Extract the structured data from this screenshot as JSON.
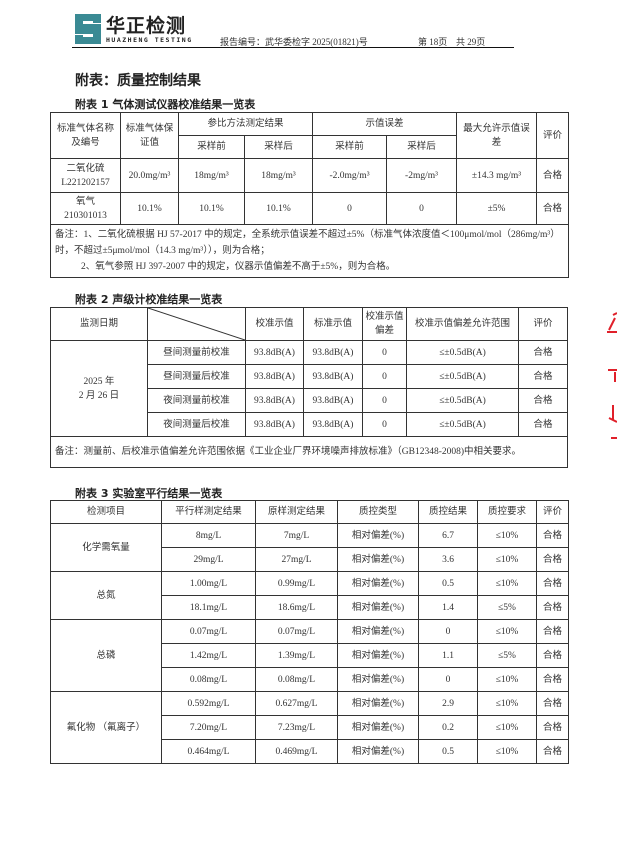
{
  "header": {
    "logo_cn": "华正检测",
    "logo_en": "HUAZHENG TESTING",
    "report_no": "报告编号：武华委检字 2025(01821)号",
    "page": "第 18页",
    "total": "共 29页"
  },
  "title": "附表：质量控制结果",
  "table1": {
    "caption": "附表 1  气体测试仪器校准结果一览表",
    "headers": {
      "name": "标准气体名称及编号",
      "cert": "标准气体保证值",
      "ref": "参比方法测定结果",
      "err": "示值误差",
      "before": "采样前",
      "after": "采样后",
      "max": "最大允许示值误差",
      "eval": "评价"
    },
    "rows": [
      {
        "name": "二氧化硫",
        "id": "L221202157",
        "cert": "20.0mg/m³",
        "ref_before": "18mg/m³",
        "ref_after": "18mg/m³",
        "err_before": "-2.0mg/m³",
        "err_after": "-2mg/m³",
        "max": "±14.3 mg/m³",
        "eval": "合格"
      },
      {
        "name": "氧气",
        "id": "210301013",
        "cert": "10.1%",
        "ref_before": "10.1%",
        "ref_after": "10.1%",
        "err_before": "0",
        "err_after": "0",
        "max": "±5%",
        "eval": "合格"
      }
    ],
    "note1": "备注：1、二氧化硫根据 HJ 57-2017 中的规定，全系统示值误差不超过±5%（标准气体浓度值＜100μmol/mol（286mg/m³）时，不超过±5μmol/mol（14.3 mg/m³）），则为合格；",
    "note2": "2、氧气参照 HJ 397-2007 中的规定，仪器示值偏差不高于±5%，则为合格。"
  },
  "table2": {
    "caption": "附表 2  声级计校准结果一览表",
    "headers": {
      "date": "监测日期",
      "cal": "校准示值",
      "std": "标准示值",
      "dev": "校准示值偏差",
      "range": "校准示值偏差允许范围",
      "eval": "评价"
    },
    "date_line1": "2025 年",
    "date_line2": "2 月 26 日",
    "rows": [
      {
        "item": "昼间测量前校准",
        "cal": "93.8dB(A)",
        "std": "93.8dB(A)",
        "dev": "0",
        "range": "≤±0.5dB(A)",
        "eval": "合格"
      },
      {
        "item": "昼间测量后校准",
        "cal": "93.8dB(A)",
        "std": "93.8dB(A)",
        "dev": "0",
        "range": "≤±0.5dB(A)",
        "eval": "合格"
      },
      {
        "item": "夜间测量前校准",
        "cal": "93.8dB(A)",
        "std": "93.8dB(A)",
        "dev": "0",
        "range": "≤±0.5dB(A)",
        "eval": "合格"
      },
      {
        "item": "夜间测量后校准",
        "cal": "93.8dB(A)",
        "std": "93.8dB(A)",
        "dev": "0",
        "range": "≤±0.5dB(A)",
        "eval": "合格"
      }
    ],
    "note": "备注：测量前、后校准示值偏差允许范围依据《工业企业厂界环境噪声排放标准》（GB12348-2008)中相关要求。"
  },
  "table3": {
    "caption": "附表 3  实验室平行结果一览表",
    "headers": [
      "检测项目",
      "平行样测定结果",
      "原样测定结果",
      "质控类型",
      "质控结果",
      "质控要求",
      "评价"
    ],
    "groups": [
      {
        "item": "化学需氧量",
        "rows": [
          [
            "8mg/L",
            "7mg/L",
            "相对偏差(%)",
            "6.7",
            "≤10%",
            "合格"
          ],
          [
            "29mg/L",
            "27mg/L",
            "相对偏差(%)",
            "3.6",
            "≤10%",
            "合格"
          ]
        ]
      },
      {
        "item": "总氮",
        "rows": [
          [
            "1.00mg/L",
            "0.99mg/L",
            "相对偏差(%)",
            "0.5",
            "≤10%",
            "合格"
          ],
          [
            "18.1mg/L",
            "18.6mg/L",
            "相对偏差(%)",
            "1.4",
            "≤5%",
            "合格"
          ]
        ]
      },
      {
        "item": "总磷",
        "rows": [
          [
            "0.07mg/L",
            "0.07mg/L",
            "相对偏差(%)",
            "0",
            "≤10%",
            "合格"
          ],
          [
            "1.42mg/L",
            "1.39mg/L",
            "相对偏差(%)",
            "1.1",
            "≤5%",
            "合格"
          ],
          [
            "0.08mg/L",
            "0.08mg/L",
            "相对偏差(%)",
            "0",
            "≤10%",
            "合格"
          ]
        ]
      },
      {
        "item": "氟化物 （氟离子）",
        "rows": [
          [
            "0.592mg/L",
            "0.627mg/L",
            "相对偏差(%)",
            "2.9",
            "≤10%",
            "合格"
          ],
          [
            "7.20mg/L",
            "7.23mg/L",
            "相对偏差(%)",
            "0.2",
            "≤10%",
            "合格"
          ],
          [
            "0.464mg/L",
            "0.469mg/L",
            "相对偏差(%)",
            "0.5",
            "≤10%",
            "合格"
          ]
        ]
      }
    ]
  },
  "colors": {
    "logo": "#3a8a94",
    "stamp": "#e0202a"
  }
}
